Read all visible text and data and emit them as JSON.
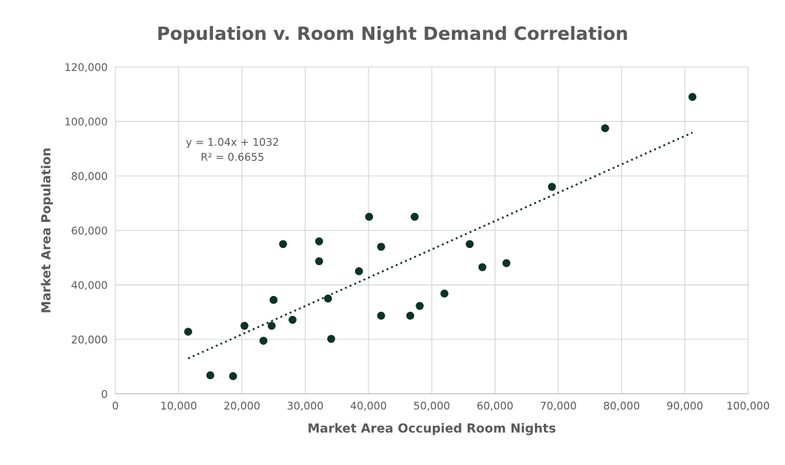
{
  "chart_data": {
    "type": "scatter",
    "title": "Population v. Room Night Demand Correlation",
    "xlabel": "Market Area Occupied Room Nights",
    "ylabel": "Market Area Population",
    "series": [
      {
        "color": "#0b3326",
        "marker": "circle",
        "x": [
          11500,
          15000,
          18600,
          20400,
          23400,
          24700,
          25000,
          26500,
          28000,
          32200,
          32200,
          33600,
          34100,
          38500,
          40100,
          42000,
          42000,
          46600,
          47300,
          48100,
          52000,
          56000,
          58000,
          61800,
          69000,
          77400,
          91200
        ],
        "values": [
          22800,
          6800,
          6500,
          25000,
          19500,
          25000,
          34500,
          55000,
          27200,
          56000,
          48700,
          35000,
          20200,
          45000,
          65000,
          54000,
          28700,
          28700,
          65000,
          32300,
          36800,
          55000,
          46500,
          48000,
          76000,
          97500,
          109000
        ]
      },
      {
        "type": "line",
        "color": "#1e3a2e",
        "line_style": "dotted",
        "marker": "none",
        "x": [
          11500,
          91200
        ],
        "values": [
          13000,
          95900
        ]
      }
    ],
    "annotations": [
      "y = 1.04x + 1032\nR² = 0.6655"
    ],
    "xlim": [
      0,
      100000
    ],
    "xticks": [
      {
        "value": 0,
        "label": "0"
      },
      {
        "value": 10000,
        "label": "10,000"
      },
      {
        "value": 20000,
        "label": "20,000"
      },
      {
        "value": 30000,
        "label": "30,000"
      },
      {
        "value": 40000,
        "label": "40,000"
      },
      {
        "value": 50000,
        "label": "50,000"
      },
      {
        "value": 60000,
        "label": "60,000"
      },
      {
        "value": 70000,
        "label": "70,000"
      },
      {
        "value": 80000,
        "label": "80,000"
      },
      {
        "value": 90000,
        "label": "90,000"
      },
      {
        "value": 100000,
        "label": "100,000"
      }
    ],
    "ylim": [
      0,
      120000
    ],
    "yticks": [
      {
        "value": 0,
        "label": "0"
      },
      {
        "value": 20000,
        "label": "20,000"
      },
      {
        "value": 40000,
        "label": "40,000"
      },
      {
        "value": 60000,
        "label": "60,000"
      },
      {
        "value": 80000,
        "label": "80,000"
      },
      {
        "value": 100000,
        "label": "100,000"
      },
      {
        "value": 120000,
        "label": "120,000"
      }
    ],
    "grid": true,
    "legend": false
  }
}
